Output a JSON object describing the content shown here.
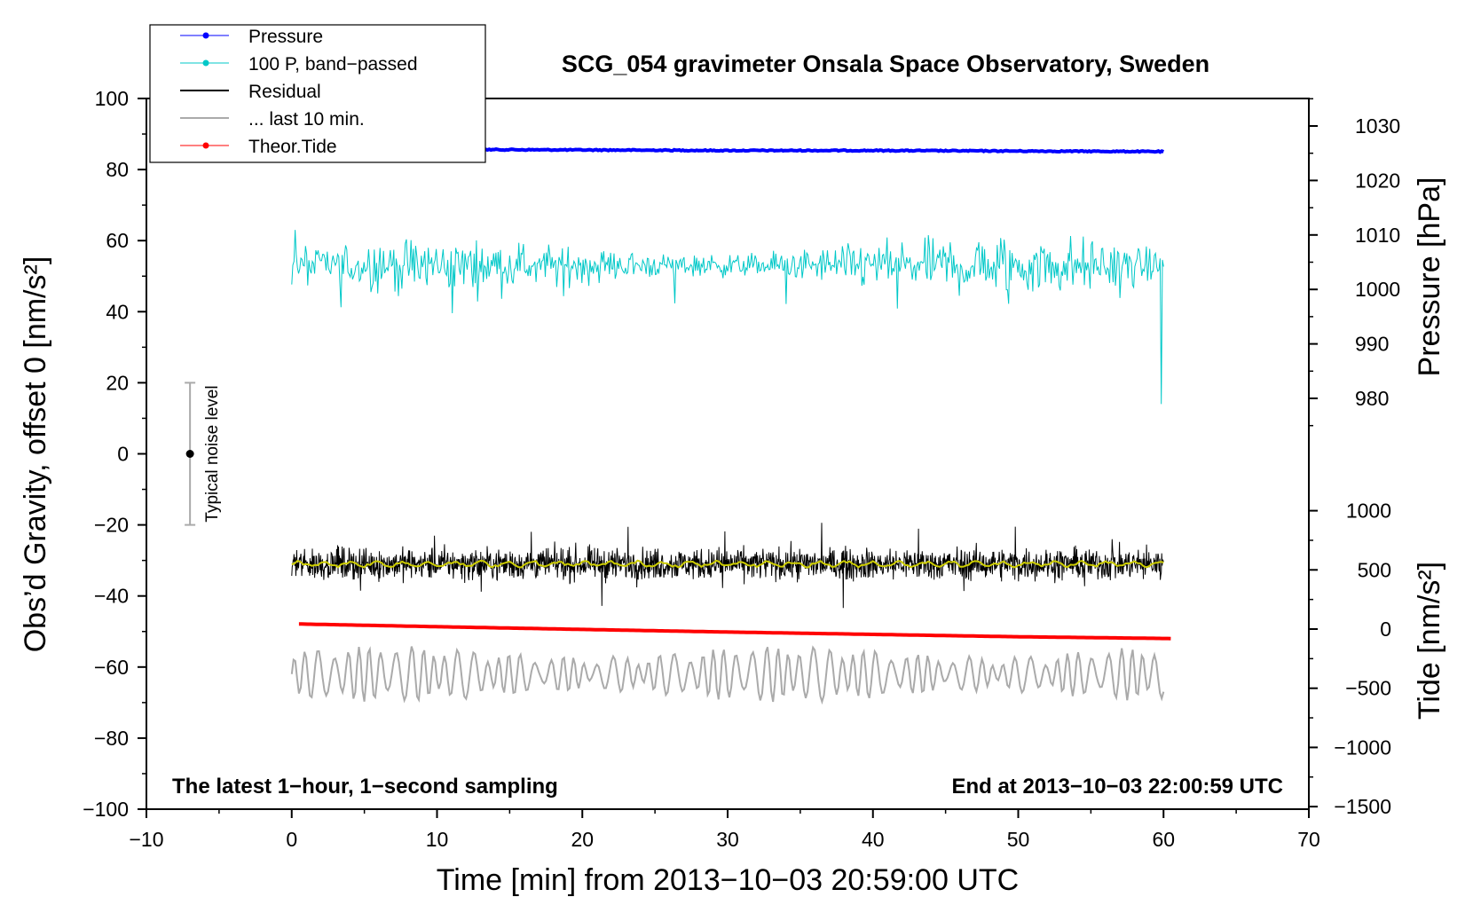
{
  "chart_data": {
    "type": "line",
    "title": "SCG_054 gravimeter Onsala Space Observatory, Sweden",
    "xlabel": "Time [min] from 2013−10−03 20:59:00 UTC",
    "ylabel_left": "Obs’d Gravity, offset 0 [nm/s²]",
    "ylabel_right_pressure": "Pressure [hPa]",
    "ylabel_right_tide": "Tide [nm/s²]",
    "xlim": [
      -10,
      70
    ],
    "ylim_left": [
      -100,
      100
    ],
    "pressure_axis": {
      "ticks": [
        980,
        990,
        1000,
        1010,
        1020,
        1030
      ]
    },
    "tide_axis": {
      "ticks": [
        -1500,
        -1000,
        -500,
        0,
        500,
        1000
      ]
    },
    "x_ticks": [
      -10,
      0,
      10,
      20,
      30,
      40,
      50,
      60,
      70
    ],
    "y_ticks_left": [
      -100,
      -80,
      -60,
      -40,
      -20,
      0,
      20,
      40,
      60,
      80,
      100
    ],
    "x_tick_labels": [
      "−10",
      "0",
      "10",
      "20",
      "30",
      "40",
      "50",
      "60",
      "70"
    ],
    "y_tick_labels_left": [
      "−100",
      "−80",
      "−60",
      "−40",
      "−20",
      "0",
      "20",
      "40",
      "60",
      "80",
      "100"
    ],
    "pressure_tick_labels": [
      "980",
      "990",
      "1000",
      "1010",
      "1020",
      "1030"
    ],
    "tide_tick_labels": [
      "−1500",
      "−1000",
      "−500",
      "0",
      "500",
      "1000"
    ],
    "grid": false,
    "legend_position": "top-left",
    "annotation_left": "The latest 1−hour, 1−second sampling",
    "annotation_right": "End at 2013−10−03 22:00:59 UTC",
    "noise_bar": {
      "label": "Typical noise level",
      "x": -7,
      "center": 0,
      "low": -20,
      "high": 20
    },
    "series": [
      {
        "name": "Pressure",
        "color": "#0000ff",
        "x": [
          0.5,
          10,
          20,
          30,
          40,
          50,
          60
        ],
        "values": [
          1025.8,
          1025.7,
          1025.6,
          1025.5,
          1025.5,
          1025.4,
          1025.3
        ],
        "axis": "pressure"
      },
      {
        "name": "100 P, band−passed",
        "color": "#00c8c8",
        "x": [
          0,
          60
        ],
        "mean": 50,
        "range": [
          14,
          64
        ],
        "axis": "left"
      },
      {
        "name": "Residual",
        "color": "#000000",
        "x": [
          0,
          60
        ],
        "mean": -31,
        "range": [
          -45,
          -16
        ],
        "axis": "left"
      },
      {
        "name": "... last 10 min.",
        "color": "#aaaaaa",
        "x": [
          0,
          60
        ],
        "mean": -62,
        "range": [
          -74,
          -50
        ],
        "axis": "left"
      },
      {
        "name": "Theor.Tide",
        "color": "#ff0000",
        "x": [
          0.5,
          10,
          20,
          30,
          40,
          50,
          60.5
        ],
        "values": [
          43,
          20,
          -3,
          -25,
          -45,
          -65,
          -80
        ],
        "axis": "tide"
      }
    ],
    "smoothed_residual_color": "#cccc00"
  }
}
